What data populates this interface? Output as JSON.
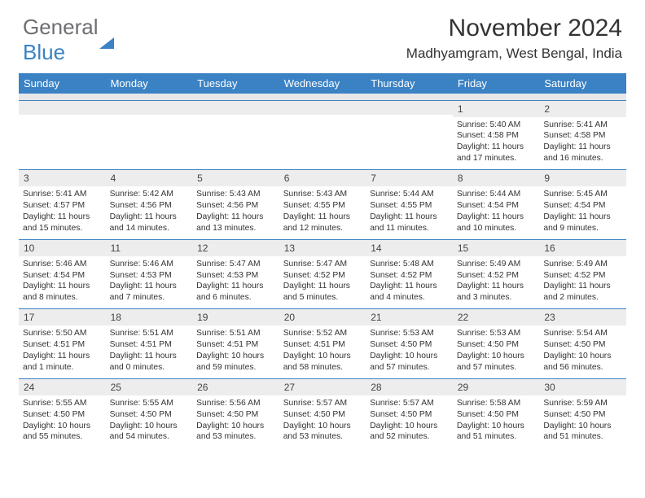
{
  "logo": {
    "general": "General",
    "blue": "Blue"
  },
  "title": "November 2024",
  "location": "Madhyamgram, West Bengal, India",
  "colors": {
    "header_bg": "#3b82c4",
    "daynum_bg": "#ededed",
    "border": "#3b82c4",
    "text": "#333333",
    "logo_gray": "#6d6e71",
    "logo_blue": "#3b82c4"
  },
  "dayHeaders": [
    "Sunday",
    "Monday",
    "Tuesday",
    "Wednesday",
    "Thursday",
    "Friday",
    "Saturday"
  ],
  "weeks": [
    [
      {
        "empty": true
      },
      {
        "empty": true
      },
      {
        "empty": true
      },
      {
        "empty": true
      },
      {
        "empty": true
      },
      {
        "num": "1",
        "sunrise": "Sunrise: 5:40 AM",
        "sunset": "Sunset: 4:58 PM",
        "dl1": "Daylight: 11 hours",
        "dl2": "and 17 minutes."
      },
      {
        "num": "2",
        "sunrise": "Sunrise: 5:41 AM",
        "sunset": "Sunset: 4:58 PM",
        "dl1": "Daylight: 11 hours",
        "dl2": "and 16 minutes."
      }
    ],
    [
      {
        "num": "3",
        "sunrise": "Sunrise: 5:41 AM",
        "sunset": "Sunset: 4:57 PM",
        "dl1": "Daylight: 11 hours",
        "dl2": "and 15 minutes."
      },
      {
        "num": "4",
        "sunrise": "Sunrise: 5:42 AM",
        "sunset": "Sunset: 4:56 PM",
        "dl1": "Daylight: 11 hours",
        "dl2": "and 14 minutes."
      },
      {
        "num": "5",
        "sunrise": "Sunrise: 5:43 AM",
        "sunset": "Sunset: 4:56 PM",
        "dl1": "Daylight: 11 hours",
        "dl2": "and 13 minutes."
      },
      {
        "num": "6",
        "sunrise": "Sunrise: 5:43 AM",
        "sunset": "Sunset: 4:55 PM",
        "dl1": "Daylight: 11 hours",
        "dl2": "and 12 minutes."
      },
      {
        "num": "7",
        "sunrise": "Sunrise: 5:44 AM",
        "sunset": "Sunset: 4:55 PM",
        "dl1": "Daylight: 11 hours",
        "dl2": "and 11 minutes."
      },
      {
        "num": "8",
        "sunrise": "Sunrise: 5:44 AM",
        "sunset": "Sunset: 4:54 PM",
        "dl1": "Daylight: 11 hours",
        "dl2": "and 10 minutes."
      },
      {
        "num": "9",
        "sunrise": "Sunrise: 5:45 AM",
        "sunset": "Sunset: 4:54 PM",
        "dl1": "Daylight: 11 hours",
        "dl2": "and 9 minutes."
      }
    ],
    [
      {
        "num": "10",
        "sunrise": "Sunrise: 5:46 AM",
        "sunset": "Sunset: 4:54 PM",
        "dl1": "Daylight: 11 hours",
        "dl2": "and 8 minutes."
      },
      {
        "num": "11",
        "sunrise": "Sunrise: 5:46 AM",
        "sunset": "Sunset: 4:53 PM",
        "dl1": "Daylight: 11 hours",
        "dl2": "and 7 minutes."
      },
      {
        "num": "12",
        "sunrise": "Sunrise: 5:47 AM",
        "sunset": "Sunset: 4:53 PM",
        "dl1": "Daylight: 11 hours",
        "dl2": "and 6 minutes."
      },
      {
        "num": "13",
        "sunrise": "Sunrise: 5:47 AM",
        "sunset": "Sunset: 4:52 PM",
        "dl1": "Daylight: 11 hours",
        "dl2": "and 5 minutes."
      },
      {
        "num": "14",
        "sunrise": "Sunrise: 5:48 AM",
        "sunset": "Sunset: 4:52 PM",
        "dl1": "Daylight: 11 hours",
        "dl2": "and 4 minutes."
      },
      {
        "num": "15",
        "sunrise": "Sunrise: 5:49 AM",
        "sunset": "Sunset: 4:52 PM",
        "dl1": "Daylight: 11 hours",
        "dl2": "and 3 minutes."
      },
      {
        "num": "16",
        "sunrise": "Sunrise: 5:49 AM",
        "sunset": "Sunset: 4:52 PM",
        "dl1": "Daylight: 11 hours",
        "dl2": "and 2 minutes."
      }
    ],
    [
      {
        "num": "17",
        "sunrise": "Sunrise: 5:50 AM",
        "sunset": "Sunset: 4:51 PM",
        "dl1": "Daylight: 11 hours",
        "dl2": "and 1 minute."
      },
      {
        "num": "18",
        "sunrise": "Sunrise: 5:51 AM",
        "sunset": "Sunset: 4:51 PM",
        "dl1": "Daylight: 11 hours",
        "dl2": "and 0 minutes."
      },
      {
        "num": "19",
        "sunrise": "Sunrise: 5:51 AM",
        "sunset": "Sunset: 4:51 PM",
        "dl1": "Daylight: 10 hours",
        "dl2": "and 59 minutes."
      },
      {
        "num": "20",
        "sunrise": "Sunrise: 5:52 AM",
        "sunset": "Sunset: 4:51 PM",
        "dl1": "Daylight: 10 hours",
        "dl2": "and 58 minutes."
      },
      {
        "num": "21",
        "sunrise": "Sunrise: 5:53 AM",
        "sunset": "Sunset: 4:50 PM",
        "dl1": "Daylight: 10 hours",
        "dl2": "and 57 minutes."
      },
      {
        "num": "22",
        "sunrise": "Sunrise: 5:53 AM",
        "sunset": "Sunset: 4:50 PM",
        "dl1": "Daylight: 10 hours",
        "dl2": "and 57 minutes."
      },
      {
        "num": "23",
        "sunrise": "Sunrise: 5:54 AM",
        "sunset": "Sunset: 4:50 PM",
        "dl1": "Daylight: 10 hours",
        "dl2": "and 56 minutes."
      }
    ],
    [
      {
        "num": "24",
        "sunrise": "Sunrise: 5:55 AM",
        "sunset": "Sunset: 4:50 PM",
        "dl1": "Daylight: 10 hours",
        "dl2": "and 55 minutes."
      },
      {
        "num": "25",
        "sunrise": "Sunrise: 5:55 AM",
        "sunset": "Sunset: 4:50 PM",
        "dl1": "Daylight: 10 hours",
        "dl2": "and 54 minutes."
      },
      {
        "num": "26",
        "sunrise": "Sunrise: 5:56 AM",
        "sunset": "Sunset: 4:50 PM",
        "dl1": "Daylight: 10 hours",
        "dl2": "and 53 minutes."
      },
      {
        "num": "27",
        "sunrise": "Sunrise: 5:57 AM",
        "sunset": "Sunset: 4:50 PM",
        "dl1": "Daylight: 10 hours",
        "dl2": "and 53 minutes."
      },
      {
        "num": "28",
        "sunrise": "Sunrise: 5:57 AM",
        "sunset": "Sunset: 4:50 PM",
        "dl1": "Daylight: 10 hours",
        "dl2": "and 52 minutes."
      },
      {
        "num": "29",
        "sunrise": "Sunrise: 5:58 AM",
        "sunset": "Sunset: 4:50 PM",
        "dl1": "Daylight: 10 hours",
        "dl2": "and 51 minutes."
      },
      {
        "num": "30",
        "sunrise": "Sunrise: 5:59 AM",
        "sunset": "Sunset: 4:50 PM",
        "dl1": "Daylight: 10 hours",
        "dl2": "and 51 minutes."
      }
    ]
  ]
}
